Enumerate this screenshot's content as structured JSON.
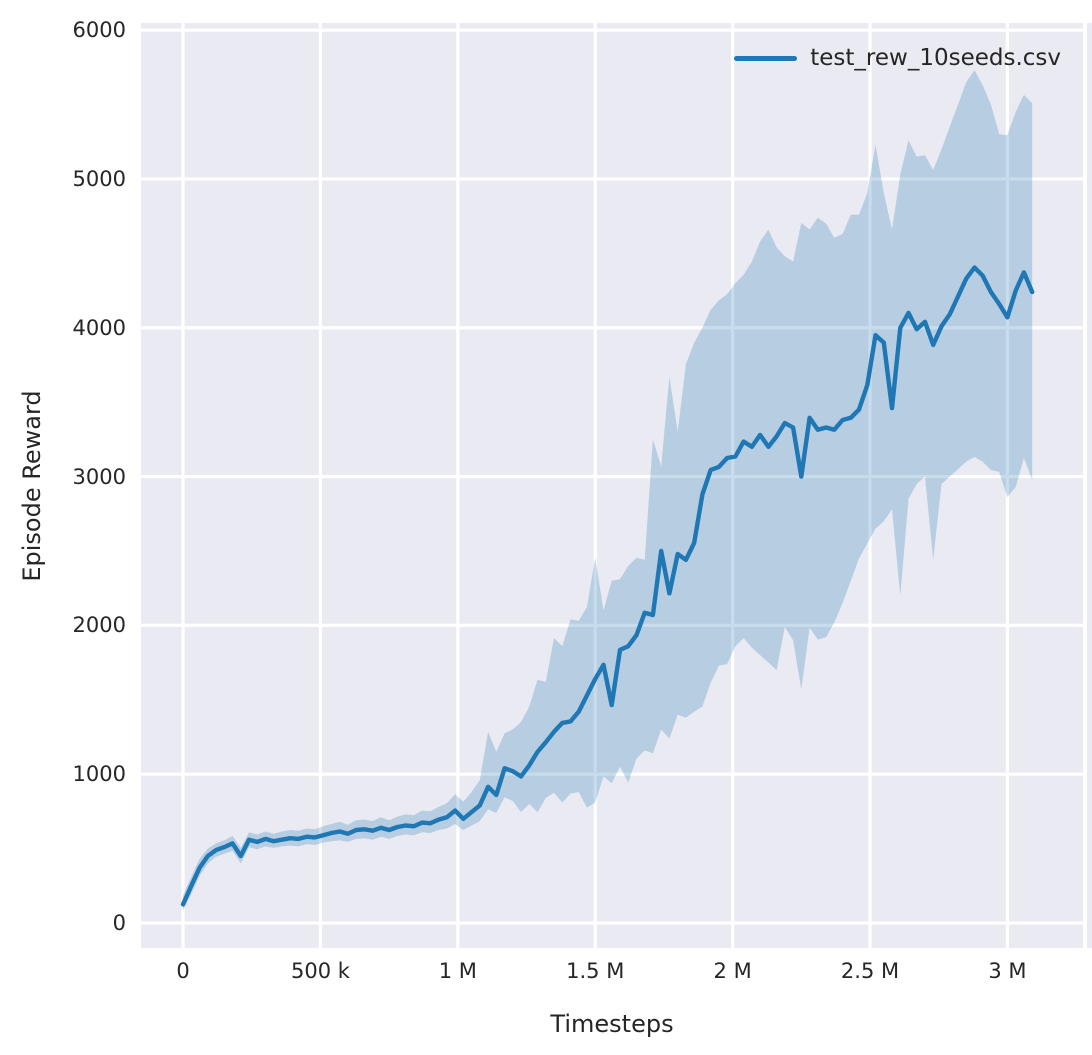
{
  "figure": {
    "xlabel": "Timesteps",
    "ylabel": "Episode Reward",
    "legend_label": "test_rew_10seeds.csv"
  },
  "chart_data": {
    "type": "line",
    "title": "",
    "xlabel": "Timesteps",
    "ylabel": "Episode Reward",
    "legend_entries": [
      "test_rew_10seeds.csv"
    ],
    "legend_position": "upper right",
    "grid": true,
    "style": "seaborn-darkgrid",
    "axes_bg": "#eaeaf2",
    "grid_color": "#ffffff",
    "line_color": "#1f77b4",
    "band_color": "rgba(31,119,180,0.25)",
    "x_unit": "millions_of_timesteps",
    "xlim": [
      -0.153,
      3.275
    ],
    "ylim": [
      -168,
      6048
    ],
    "xticks": [
      0,
      0.5,
      1.0,
      1.5,
      2.0,
      2.5,
      3.0
    ],
    "xtick_labels": [
      "0",
      "500 k",
      "1 M",
      "1.5 M",
      "2 M",
      "2.5 M",
      "3 M"
    ],
    "yticks": [
      0,
      1000,
      2000,
      3000,
      4000,
      5000,
      6000
    ],
    "ytick_labels": [
      "0",
      "1000",
      "2000",
      "3000",
      "4000",
      "5000",
      "6000"
    ],
    "x": [
      0.0,
      0.03,
      0.06,
      0.09,
      0.12,
      0.15,
      0.18,
      0.21,
      0.24,
      0.27,
      0.3,
      0.33,
      0.36,
      0.39,
      0.42,
      0.45,
      0.48,
      0.51,
      0.54,
      0.57,
      0.6,
      0.63,
      0.66,
      0.69,
      0.72,
      0.75,
      0.78,
      0.81,
      0.84,
      0.87,
      0.9,
      0.93,
      0.96,
      0.99,
      1.02,
      1.05,
      1.08,
      1.11,
      1.14,
      1.17,
      1.2,
      1.23,
      1.26,
      1.29,
      1.32,
      1.35,
      1.38,
      1.41,
      1.44,
      1.47,
      1.5,
      1.53,
      1.56,
      1.59,
      1.62,
      1.65,
      1.68,
      1.71,
      1.74,
      1.77,
      1.8,
      1.83,
      1.86,
      1.89,
      1.92,
      1.95,
      1.98,
      2.01,
      2.04,
      2.07,
      2.1,
      2.13,
      2.16,
      2.19,
      2.22,
      2.25,
      2.28,
      2.31,
      2.34,
      2.37,
      2.4,
      2.43,
      2.46,
      2.49,
      2.52,
      2.55,
      2.58,
      2.61,
      2.64,
      2.67,
      2.7,
      2.73,
      2.76,
      2.79,
      2.82,
      2.85,
      2.88,
      2.91,
      2.94,
      2.97,
      3.0,
      3.03,
      3.06,
      3.09
    ],
    "series": [
      {
        "name": "test_rew_10seeds.csv",
        "mean": [
          125,
          250,
          370,
          450,
          490,
          510,
          535,
          450,
          560,
          545,
          565,
          550,
          560,
          570,
          565,
          580,
          575,
          590,
          605,
          615,
          600,
          625,
          630,
          620,
          640,
          625,
          645,
          655,
          650,
          675,
          670,
          695,
          710,
          755,
          700,
          745,
          790,
          915,
          860,
          1040,
          1020,
          985,
          1060,
          1150,
          1215,
          1285,
          1345,
          1355,
          1420,
          1530,
          1640,
          1735,
          1465,
          1835,
          1860,
          1935,
          2085,
          2070,
          2500,
          2215,
          2480,
          2440,
          2555,
          2880,
          3045,
          3065,
          3125,
          3135,
          3235,
          3200,
          3280,
          3200,
          3270,
          3360,
          3330,
          3000,
          3395,
          3315,
          3330,
          3315,
          3380,
          3395,
          3450,
          3615,
          3950,
          3900,
          3460,
          4000,
          4100,
          3990,
          4040,
          3885,
          4010,
          4090,
          4210,
          4330,
          4405,
          4350,
          4240,
          4160,
          4070,
          4250,
          4372,
          4240
        ],
        "band_upper": [
          185,
          310,
          430,
          500,
          535,
          555,
          585,
          505,
          610,
          595,
          615,
          600,
          615,
          625,
          620,
          635,
          630,
          650,
          665,
          680,
          660,
          690,
          695,
          685,
          710,
          690,
          715,
          730,
          725,
          755,
          750,
          780,
          805,
          865,
          815,
          880,
          960,
          1285,
          1150,
          1275,
          1300,
          1350,
          1455,
          1635,
          1620,
          1915,
          1860,
          2040,
          2030,
          2125,
          2455,
          2100,
          2300,
          2310,
          2400,
          2455,
          2440,
          3250,
          3070,
          3670,
          3300,
          3755,
          3900,
          4000,
          4120,
          4185,
          4225,
          4300,
          4355,
          4445,
          4580,
          4660,
          4540,
          4480,
          4445,
          4705,
          4660,
          4740,
          4700,
          4605,
          4630,
          4760,
          4760,
          4905,
          5230,
          4905,
          4660,
          5030,
          5260,
          5150,
          5160,
          5060,
          5200,
          5350,
          5500,
          5650,
          5730,
          5630,
          5500,
          5300,
          5295,
          5450,
          5565,
          5510
        ],
        "band_lower": [
          85,
          195,
          315,
          400,
          445,
          465,
          485,
          400,
          510,
          495,
          515,
          505,
          515,
          520,
          515,
          530,
          525,
          540,
          550,
          555,
          545,
          565,
          570,
          560,
          580,
          565,
          585,
          595,
          590,
          610,
          605,
          625,
          635,
          665,
          625,
          655,
          685,
          765,
          740,
          845,
          820,
          745,
          800,
          745,
          840,
          875,
          810,
          870,
          880,
          775,
          810,
          985,
          940,
          1050,
          945,
          1105,
          1160,
          1140,
          1300,
          1240,
          1400,
          1380,
          1420,
          1455,
          1615,
          1730,
          1740,
          1860,
          1915,
          1850,
          1800,
          1750,
          1700,
          1990,
          1900,
          1570,
          1985,
          1905,
          1920,
          2020,
          2150,
          2300,
          2450,
          2550,
          2650,
          2700,
          2780,
          2200,
          2850,
          2950,
          3000,
          2440,
          2950,
          3000,
          3050,
          3100,
          3132,
          3100,
          3045,
          3031,
          2863,
          2930,
          3125,
          2977
        ]
      }
    ]
  }
}
